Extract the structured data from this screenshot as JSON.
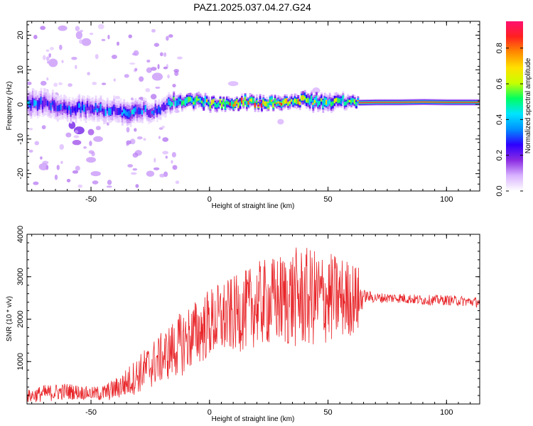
{
  "title": "PAZ1.2025.037.04.27.G24",
  "colors": {
    "snr_line": "#e8262a",
    "axis": "#000000",
    "colormap": [
      "#ffffff",
      "#d9b3ff",
      "#8a2be2",
      "#2d00ff",
      "#0090ff",
      "#00e5ff",
      "#00ff60",
      "#c8ff00",
      "#ffe000",
      "#ff8a00",
      "#ff2020",
      "#ff1070"
    ]
  },
  "chart_data": [
    {
      "type": "heatmap",
      "xlabel": "Height of straight line (km)",
      "ylabel": "Frequency (Hz)",
      "xlim": [
        -77,
        114
      ],
      "ylim": [
        -25,
        24
      ],
      "x_ticks": [
        -50,
        0,
        50,
        100
      ],
      "y_ticks": [
        -20,
        -10,
        0,
        10,
        20
      ],
      "colorbar": {
        "label": "Normalized spectral amplitude",
        "range": [
          0,
          0.95
        ],
        "ticks": [
          0.0,
          0.2,
          0.4,
          0.6,
          0.8
        ]
      },
      "ridge": {
        "x": [
          -77,
          -70,
          -60,
          -55,
          -50,
          -45,
          -40,
          -35,
          -30,
          -25,
          -20,
          -17,
          -15,
          -10,
          -5,
          0,
          5,
          10,
          15,
          20,
          25,
          30,
          35,
          40,
          45,
          50,
          55,
          60,
          63,
          70,
          80,
          90,
          100,
          114
        ],
        "frequency": [
          0.5,
          0.3,
          -1.5,
          -1.0,
          -1.2,
          -1.5,
          -1.8,
          -2.5,
          -1.5,
          -2.0,
          -1.5,
          0.5,
          1.0,
          0.8,
          1.0,
          0.2,
          0.5,
          -0.2,
          0.8,
          0.3,
          0.5,
          0.2,
          0.8,
          1.2,
          0.8,
          0.5,
          1.0,
          1.0,
          0.5,
          0.6,
          0.6,
          0.7,
          0.6,
          0.6
        ],
        "amplitude": [
          0.4,
          0.3,
          0.3,
          0.35,
          0.3,
          0.35,
          0.3,
          0.4,
          0.35,
          0.3,
          0.3,
          0.4,
          0.5,
          0.6,
          0.65,
          0.7,
          0.7,
          0.75,
          0.75,
          0.8,
          0.8,
          0.75,
          0.7,
          0.65,
          0.65,
          0.6,
          0.55,
          0.55,
          0.9,
          0.9,
          0.9,
          0.9,
          0.88,
          0.88
        ],
        "width": [
          3.5,
          3.5,
          3.0,
          3.0,
          3.0,
          3.0,
          3.0,
          3.0,
          3.0,
          2.5,
          2.5,
          2.5,
          2.0,
          1.8,
          1.8,
          1.5,
          1.5,
          1.5,
          1.5,
          1.5,
          1.5,
          1.5,
          1.5,
          2.0,
          2.0,
          2.0,
          1.8,
          1.5,
          0.9,
          0.9,
          0.9,
          0.9,
          0.9,
          0.9
        ]
      },
      "blobs": [
        {
          "x": -62,
          "frequency": 22,
          "amplitude": 0.1
        },
        {
          "x": -66,
          "frequency": 12,
          "amplitude": 0.1
        },
        {
          "x": -70,
          "frequency": -18,
          "amplitude": 0.1
        },
        {
          "x": -55,
          "frequency": 20,
          "amplitude": 0.1
        },
        {
          "x": -52,
          "frequency": 18,
          "amplitude": 0.1
        },
        {
          "x": -50,
          "frequency": -16,
          "amplitude": 0.1
        },
        {
          "x": -48,
          "frequency": -20,
          "amplitude": 0.1
        },
        {
          "x": -56,
          "frequency": -11,
          "amplitude": 0.15
        },
        {
          "x": -58,
          "frequency": -6,
          "amplitude": 0.2
        },
        {
          "x": -55,
          "frequency": -7.5,
          "amplitude": 0.2
        },
        {
          "x": -50,
          "frequency": -8,
          "amplitude": 0.15
        },
        {
          "x": -47,
          "frequency": -10,
          "amplitude": 0.1
        },
        {
          "x": -30,
          "frequency": -14,
          "amplitude": 0.1
        },
        {
          "x": -22,
          "frequency": 8,
          "amplitude": 0.1
        },
        {
          "x": -25,
          "frequency": -20,
          "amplitude": 0.1
        },
        {
          "x": 10,
          "frequency": 6,
          "amplitude": 0.08
        },
        {
          "x": 30,
          "frequency": -5,
          "amplitude": 0.08
        },
        {
          "x": 45,
          "frequency": 4,
          "amplitude": 0.08
        }
      ]
    },
    {
      "type": "line",
      "xlabel": "Height of straight line (km)",
      "ylabel": "SNR (10 * v/v)",
      "xlim": [
        -77,
        114
      ],
      "ylim": [
        0,
        4000
      ],
      "x_ticks": [
        -50,
        0,
        50,
        100
      ],
      "y_ticks": [
        1000,
        2000,
        3000,
        4000
      ],
      "series": [
        {
          "envelope": {
            "x": [
              -77,
              -70,
              -60,
              -50,
              -45,
              -40,
              -35,
              -30,
              -25,
              -20,
              -15,
              -10,
              -5,
              0,
              5,
              10,
              15,
              20,
              25,
              30,
              35,
              40,
              45,
              50,
              55,
              60,
              63,
              65,
              70,
              80,
              90,
              100,
              114
            ],
            "mean": [
              180,
              250,
              300,
              250,
              250,
              350,
              500,
              700,
              900,
              1100,
              1300,
              1500,
              1700,
              1900,
              2000,
              2100,
              2200,
              2350,
              2400,
              2450,
              2500,
              2500,
              2500,
              2500,
              2500,
              2500,
              2450,
              2550,
              2500,
              2500,
              2450,
              2450,
              2400
            ],
            "spread": [
              150,
              200,
              200,
              150,
              200,
              250,
              350,
              450,
              550,
              600,
              700,
              800,
              800,
              850,
              900,
              900,
              950,
              1000,
              1050,
              1100,
              1200,
              1200,
              1150,
              1100,
              1000,
              900,
              800,
              150,
              120,
              120,
              120,
              120,
              120
            ]
          }
        }
      ]
    }
  ]
}
